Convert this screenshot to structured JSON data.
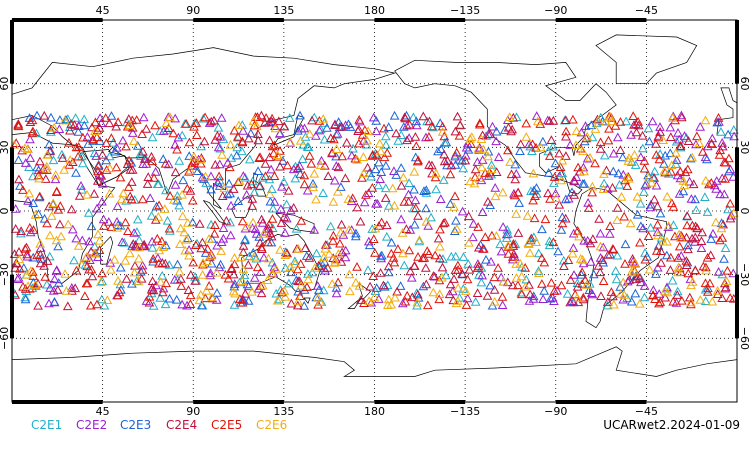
{
  "map": {
    "projection": "equirectangular",
    "center_longitude": 180,
    "bounds": {
      "lon_min": 0,
      "lon_max": 360,
      "lat_min": -90,
      "lat_max": 90
    },
    "grid": true,
    "top_ticks": [
      "45",
      "90",
      "135",
      "180",
      "−135",
      "−90",
      "−45"
    ],
    "bottom_ticks": [
      "45",
      "90",
      "135",
      "180",
      "−135",
      "−90",
      "−45"
    ],
    "left_ticks": [
      "60",
      "30",
      "0",
      "−30",
      "−60"
    ],
    "right_ticks": [
      "60",
      "30",
      "0",
      "−30",
      "−60"
    ]
  },
  "legend": [
    {
      "name": "C2E1",
      "color": "#22b0c8"
    },
    {
      "name": "C2E2",
      "color": "#9c1fd0"
    },
    {
      "name": "C2E3",
      "color": "#1c64d8"
    },
    {
      "name": "C2E4",
      "color": "#c0113d"
    },
    {
      "name": "C2E5",
      "color": "#e0140a"
    },
    {
      "name": "C2E6",
      "color": "#f2ad10"
    }
  ],
  "footer": {
    "id": "UCARwet2.2024-01-09"
  },
  "chart_data": {
    "type": "scatter",
    "marker": "triangle",
    "title": "",
    "xlabel": "",
    "ylabel": "",
    "xlim": [
      0,
      360
    ],
    "ylim": [
      -90,
      90
    ],
    "grid": true,
    "legend_placement": "bottom-left",
    "series": [
      {
        "name": "C2E1",
        "color": "#22b0c8",
        "count": 260,
        "lat_range": [
          -45,
          45
        ]
      },
      {
        "name": "C2E2",
        "color": "#9c1fd0",
        "count": 320,
        "lat_range": [
          -45,
          45
        ]
      },
      {
        "name": "C2E3",
        "color": "#1c64d8",
        "count": 230,
        "lat_range": [
          -45,
          45
        ]
      },
      {
        "name": "C2E4",
        "color": "#c0113d",
        "count": 320,
        "lat_range": [
          -45,
          45
        ]
      },
      {
        "name": "C2E5",
        "color": "#e0140a",
        "count": 360,
        "lat_range": [
          -45,
          45
        ]
      },
      {
        "name": "C2E6",
        "color": "#f2ad10",
        "count": 300,
        "lat_range": [
          -45,
          45
        ]
      }
    ]
  }
}
